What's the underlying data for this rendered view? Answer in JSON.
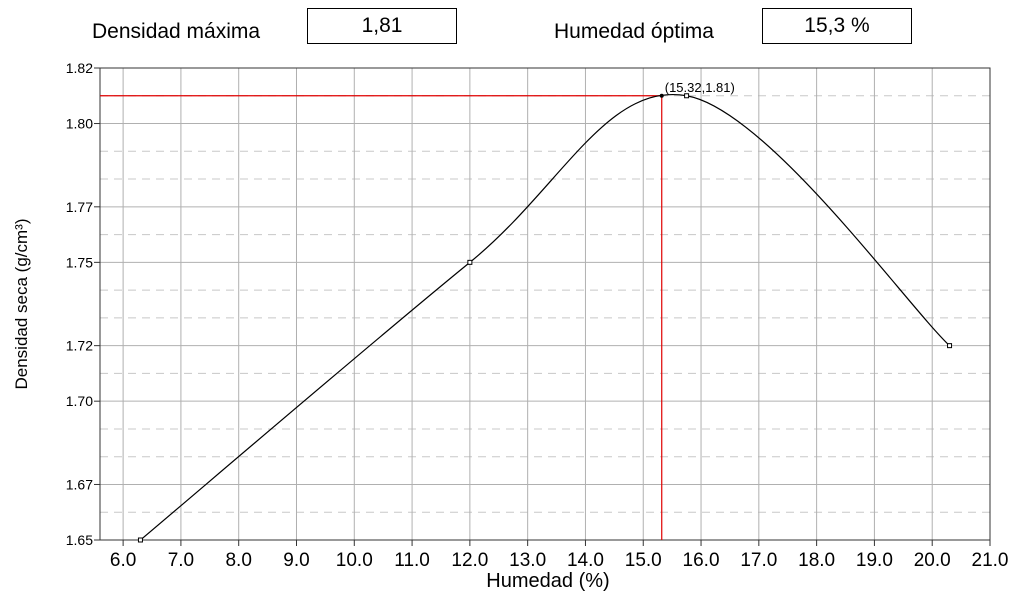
{
  "header": {
    "max_density_label": "Densidad máxima",
    "max_density_value": "1,81",
    "optimal_moisture_label": "Humedad óptima",
    "optimal_moisture_value": "15,3 %"
  },
  "colors": {
    "curve": "#000000",
    "reference_lines": "#e00000",
    "grid": "#c8c8c8"
  },
  "chart_data": {
    "type": "line",
    "xlabel": "Humedad (%)",
    "ylabel": "Densidad seca (g/cm³)",
    "xlim": [
      5.6,
      21.0
    ],
    "ylim": [
      1.65,
      1.82
    ],
    "x_ticks": [
      6.0,
      7.0,
      8.0,
      9.0,
      10.0,
      11.0,
      12.0,
      13.0,
      14.0,
      15.0,
      16.0,
      17.0,
      18.0,
      19.0,
      20.0,
      21.0
    ],
    "x_tick_labels": [
      "6.0",
      "7.0",
      "8.0",
      "9.0",
      "10.0",
      "11.0",
      "12.0",
      "13.0",
      "14.0",
      "15.0",
      "16.0",
      "17.0",
      "18.0",
      "19.0",
      "20.0",
      "21.0"
    ],
    "y_ticks": [
      1.65,
      1.67,
      1.7,
      1.72,
      1.75,
      1.77,
      1.8,
      1.82
    ],
    "y_tick_labels": [
      "1.65",
      "1.67",
      "1.70",
      "1.72",
      "1.75",
      "1.77",
      "1.80",
      "1.82"
    ],
    "grid": true,
    "series": [
      {
        "x": [
          6.3,
          12.0,
          15.75,
          20.3
        ],
        "y": [
          1.65,
          1.75,
          1.81,
          1.72
        ]
      }
    ],
    "peak": {
      "x": 15.32,
      "y": 1.81,
      "label": "(15.32,1.81)"
    }
  }
}
